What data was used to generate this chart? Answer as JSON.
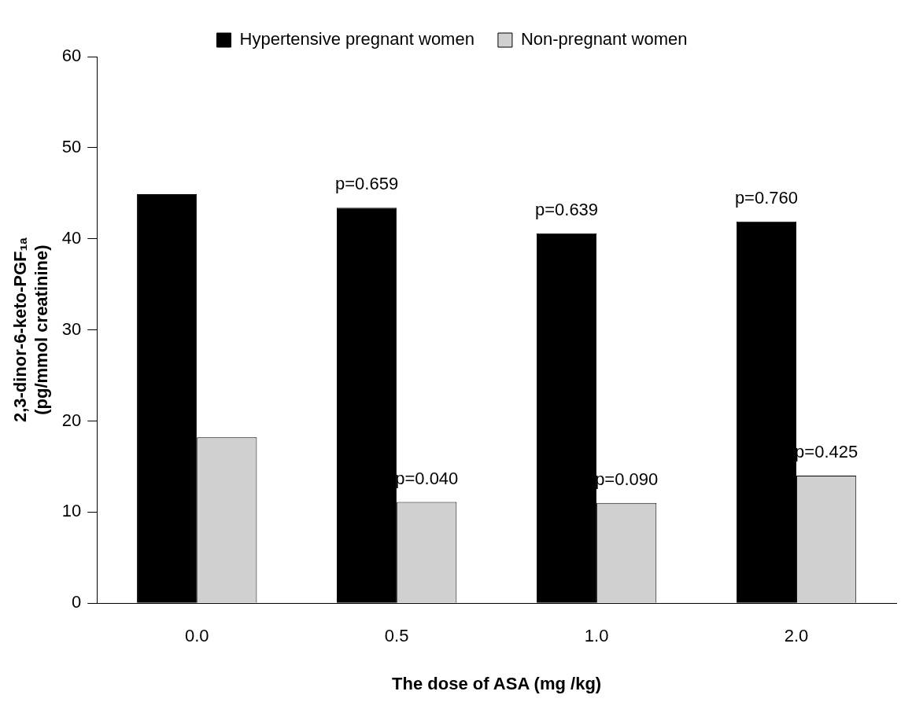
{
  "chart_data": {
    "type": "bar",
    "xlabel": "The dose of ASA (mg /kg)",
    "ylabel": "2,3-dinor-6-keto-PGF₁ₐ\n(pg/mmol creatinine)",
    "categories": [
      "0.0",
      "0.5",
      "1.0",
      "2.0"
    ],
    "series": [
      {
        "name": "Hypertensive pregnant women",
        "color": "#000000",
        "values": [
          44.9,
          43.4,
          40.6,
          41.9
        ]
      },
      {
        "name": "Non-pregnant women",
        "color": "#d0d0d0",
        "values": [
          18.2,
          11.1,
          11.0,
          14.0
        ]
      }
    ],
    "ylim": [
      0,
      60
    ],
    "yticks": [
      0,
      10,
      20,
      30,
      40,
      50,
      60
    ],
    "grid": false,
    "legend": "top",
    "annotations": [
      {
        "text": "p=0.659",
        "x": "0.5",
        "y": 43.4
      },
      {
        "text": "p=0.639",
        "x": "1.0",
        "y": 40.6
      },
      {
        "text": "p=0.760",
        "x": "2.0",
        "y": 41.9
      },
      {
        "text": "p=0.040",
        "x": "0.5",
        "y": 11.1
      },
      {
        "text": "p=0.090",
        "x": "1.0",
        "y": 11.0
      },
      {
        "text": "p=0.425",
        "x": "2.0",
        "y": 14.0
      }
    ]
  }
}
